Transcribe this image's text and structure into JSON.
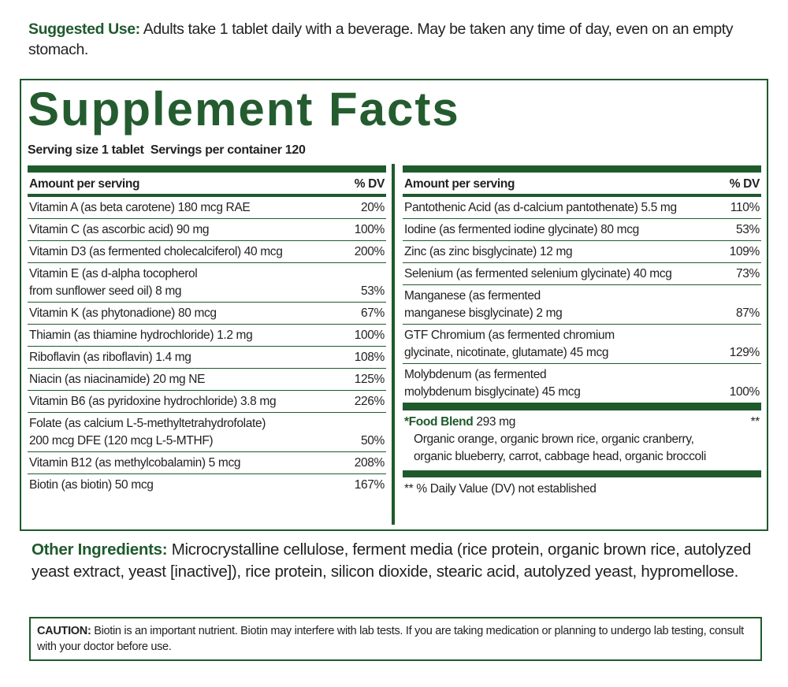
{
  "suggested_use": {
    "label": "Suggested Use:",
    "text": "Adults take 1 tablet daily with a beverage. May be taken any time of day, even on an empty stomach."
  },
  "facts": {
    "title": "Supplement Facts",
    "serving": "Serving size 1 tablet  Servings per container 120",
    "left": {
      "header": [
        "Amount per serving",
        "% DV"
      ],
      "rows": [
        {
          "lines": [
            "Vitamin A (as beta carotene) 180 mcg RAE"
          ],
          "dv": "20%"
        },
        {
          "lines": [
            "Vitamin C (as ascorbic acid) 90 mg"
          ],
          "dv": "100%"
        },
        {
          "lines": [
            "Vitamin D3 (as fermented cholecalciferol) 40 mcg"
          ],
          "dv": "200%"
        },
        {
          "lines": [
            "Vitamin E (as d-alpha tocopherol",
            "from sunflower seed oil) 8 mg"
          ],
          "dv": "53%"
        },
        {
          "lines": [
            "Vitamin K (as phytonadione) 80 mcg"
          ],
          "dv": "67%"
        },
        {
          "lines": [
            "Thiamin (as thiamine hydrochloride) 1.2 mg"
          ],
          "dv": "100%"
        },
        {
          "lines": [
            "Riboflavin (as riboflavin) 1.4 mg"
          ],
          "dv": "108%"
        },
        {
          "lines": [
            "Niacin (as niacinamide) 20 mg NE"
          ],
          "dv": "125%"
        },
        {
          "lines": [
            "Vitamin B6 (as pyridoxine hydrochloride) 3.8 mg"
          ],
          "dv": "226%"
        },
        {
          "lines": [
            "Folate (as calcium L-5-methyltetrahydrofolate)",
            "200 mcg DFE (120 mcg L-5-MTHF)"
          ],
          "dv": "50%"
        },
        {
          "lines": [
            "Vitamin B12 (as methylcobalamin) 5 mcg"
          ],
          "dv": "208%"
        },
        {
          "lines": [
            "Biotin (as biotin) 50 mcg"
          ],
          "dv": "167%"
        }
      ]
    },
    "right": {
      "header": [
        "Amount per serving",
        "% DV"
      ],
      "rows": [
        {
          "lines": [
            "Pantothenic Acid (as d-calcium pantothenate) 5.5 mg"
          ],
          "dv": "110%"
        },
        {
          "lines": [
            "Iodine (as fermented iodine glycinate) 80 mcg"
          ],
          "dv": "53%"
        },
        {
          "lines": [
            "Zinc (as zinc bisglycinate) 12 mg"
          ],
          "dv": "109%"
        },
        {
          "lines": [
            "Selenium (as fermented selenium glycinate) 40 mcg"
          ],
          "dv": "73%"
        },
        {
          "lines": [
            "Manganese (as fermented",
            "manganese bisglycinate) 2 mg"
          ],
          "dv": "87%"
        },
        {
          "lines": [
            "GTF Chromium (as fermented chromium",
            "glycinate, nicotinate, glutamate) 45 mcg"
          ],
          "dv": "129%"
        },
        {
          "lines": [
            "Molybdenum (as fermented",
            "molybdenum bisglycinate) 45 mcg"
          ],
          "dv": "100%"
        }
      ]
    },
    "food_blend": {
      "label": "*Food Blend",
      "amount": "293 mg",
      "dv": "**",
      "lines": [
        "Organic orange, organic brown rice, organic cranberry,",
        "organic blueberry, carrot, cabbage head, organic broccoli"
      ]
    },
    "footnote": "** % Daily Value (DV) not established"
  },
  "other_ingredients": {
    "label": "Other Ingredients:",
    "text": "Microcrystalline cellulose, ferment media (rice protein, organic brown rice, autolyzed yeast extract, yeast [inactive]), rice protein, silicon dioxide, stearic acid, autolyzed yeast, hypromellose."
  },
  "caution": {
    "label": "CAUTION:",
    "text": "Biotin is an important nutrient. Biotin may interfere with lab tests. If you are taking medication or planning to undergo lab testing, consult with your doctor before use."
  }
}
